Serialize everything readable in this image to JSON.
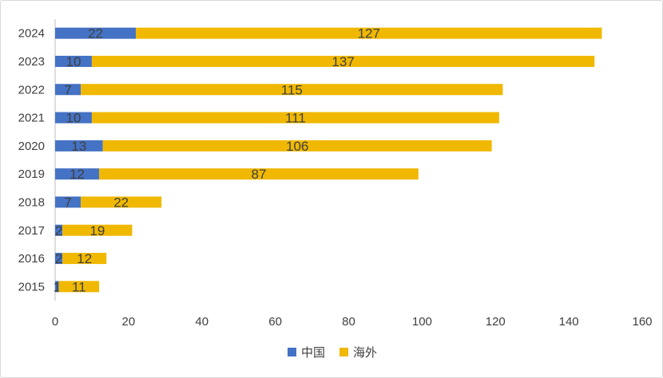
{
  "chart_data": {
    "type": "bar",
    "orientation": "horizontal",
    "stacked": true,
    "categories": [
      "2015",
      "2016",
      "2017",
      "2018",
      "2019",
      "2020",
      "2021",
      "2022",
      "2023",
      "2024"
    ],
    "series": [
      {
        "name": "中国",
        "color": "#4472c4",
        "values": [
          1,
          2,
          2,
          7,
          12,
          13,
          10,
          7,
          10,
          22
        ]
      },
      {
        "name": "海外",
        "color": "#f0b800",
        "values": [
          11,
          12,
          19,
          22,
          87,
          106,
          111,
          115,
          137,
          127
        ]
      }
    ],
    "xlim": [
      0,
      160
    ],
    "xticks": [
      0,
      20,
      40,
      60,
      80,
      100,
      120,
      140,
      160
    ],
    "grid": false,
    "legend_position": "bottom",
    "data_labels": true
  }
}
